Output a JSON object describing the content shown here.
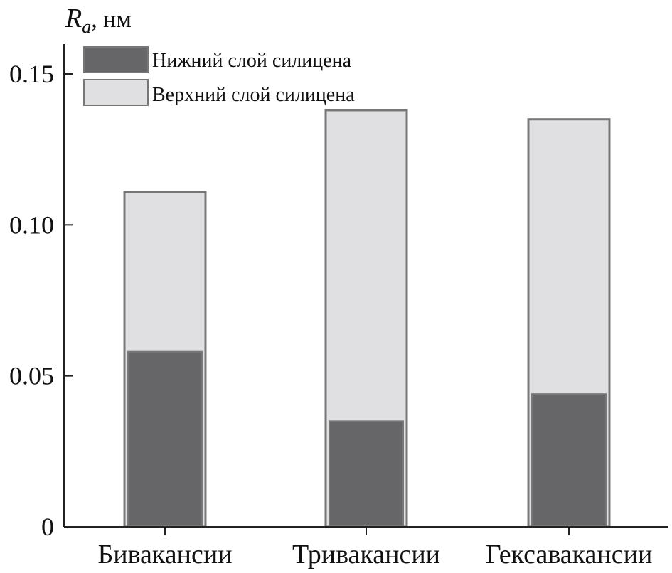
{
  "chart_data": {
    "type": "bar",
    "stacked": false,
    "overlay": true,
    "title": "",
    "xlabel": "",
    "ylabel": "R",
    "ylabel_sub": "a",
    "ylabel_unit": ", нм",
    "ylim": [
      0,
      0.16
    ],
    "yticks": [
      0,
      0.05,
      0.1,
      0.15
    ],
    "ytick_labels": [
      "0",
      "0.05",
      "0.10",
      "0.15"
    ],
    "grid": false,
    "legend_position": "top-left",
    "categories": [
      "Бивакансии",
      "Тривакансии",
      "Гексавакансии"
    ],
    "series": [
      {
        "name": "Верхний слой силицена",
        "color": "#e0e0e2",
        "edge": "#777777",
        "values": [
          0.111,
          0.138,
          0.135
        ]
      },
      {
        "name": "Нижний слой силицена",
        "color": "#666668",
        "edge": "#777777",
        "values": [
          0.058,
          0.035,
          0.044
        ]
      }
    ]
  }
}
